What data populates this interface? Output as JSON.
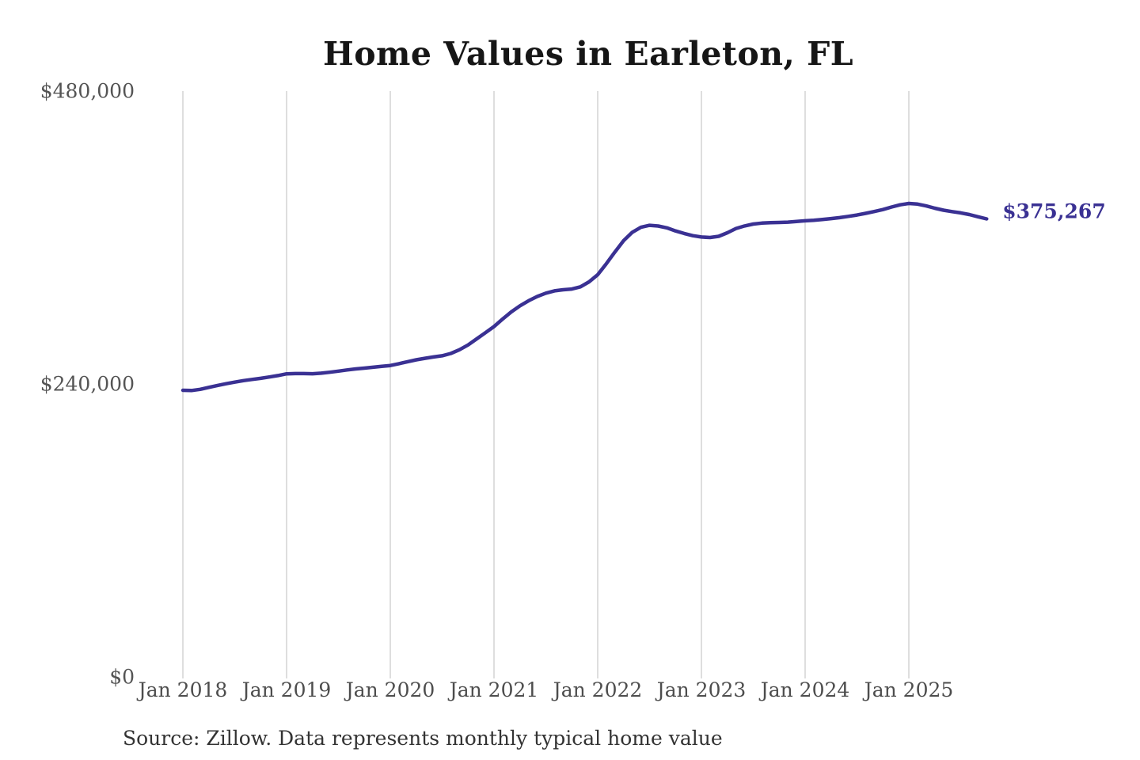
{
  "page": {
    "background": "#ffffff"
  },
  "chart_data": {
    "type": "line",
    "title": "Home Values in Earleton, FL",
    "source_note": "Source: Zillow. Data represents monthly typical home value",
    "series_name": "Monthly typical home value",
    "frequency": "monthly",
    "x_tick_labels": [
      "Jan 2018",
      "Jan 2019",
      "Jan 2020",
      "Jan 2021",
      "Jan 2022",
      "Jan 2023",
      "Jan 2024",
      "Jan 2025"
    ],
    "y_ticks": [
      {
        "label": "$0",
        "value": 0
      },
      {
        "label": "$240,000",
        "value": 240000
      },
      {
        "label": "$480,000",
        "value": 480000
      }
    ],
    "ylim": [
      0,
      480000
    ],
    "grid": "vertical-only",
    "legend": "none",
    "end_label": "$375,267",
    "end_value": 375267,
    "values": [
      234800,
      234600,
      235600,
      237200,
      238800,
      240200,
      241500,
      242700,
      243700,
      244600,
      245700,
      246900,
      248300,
      248500,
      248500,
      248400,
      248800,
      249600,
      250500,
      251500,
      252300,
      253000,
      253700,
      254400,
      255100,
      256600,
      258200,
      259800,
      261000,
      262100,
      263100,
      265000,
      268000,
      272000,
      277000,
      282000,
      287000,
      293200,
      299000,
      304000,
      308200,
      311700,
      314400,
      316300,
      317200,
      317800,
      319600,
      323700,
      329500,
      338500,
      348200,
      357500,
      364300,
      368400,
      370000,
      369400,
      367900,
      365400,
      363300,
      361500,
      360400,
      360000,
      361000,
      363900,
      367400,
      369500,
      371000,
      371800,
      372100,
      372300,
      372600,
      373100,
      373700,
      374100,
      374800,
      375500,
      376300,
      377300,
      378400,
      379800,
      381300,
      382900,
      385000,
      386800,
      387900,
      387400,
      385900,
      384000,
      382400,
      381200,
      380200,
      378800,
      377000,
      375267
    ],
    "colors": {
      "line": "#3a3193",
      "end_label": "#3a3193",
      "gridline": "#cccccc",
      "title": "#161616",
      "axis_labels": "#4d4d4d",
      "source": "#333333"
    }
  }
}
